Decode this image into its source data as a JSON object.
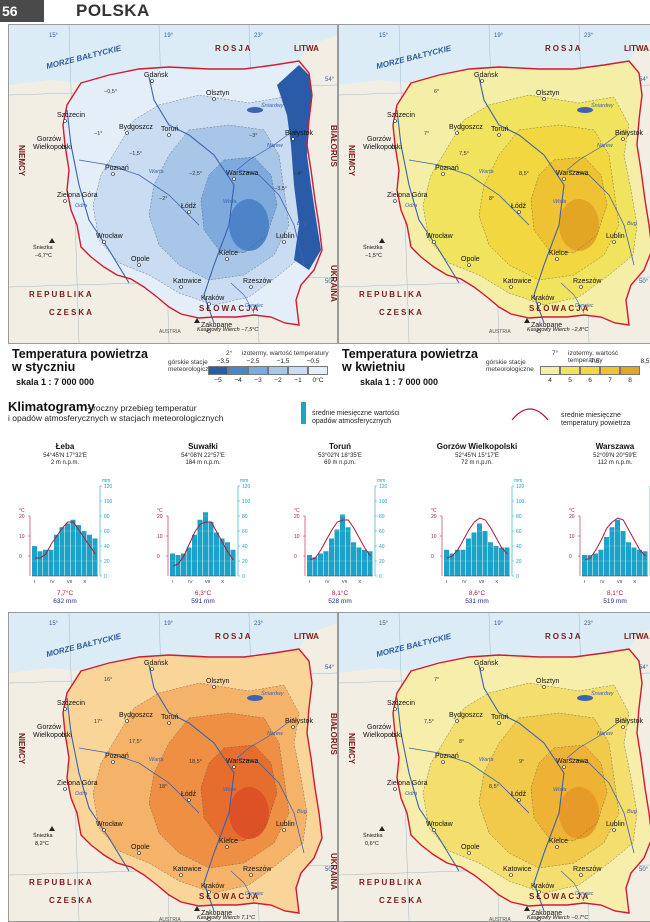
{
  "page": {
    "number": "56",
    "title": "POLSKA"
  },
  "colors": {
    "january_ramp": [
      "#e4eef8",
      "#c9dcf1",
      "#a8c6e8",
      "#7ea9dc",
      "#4d83c7",
      "#2a5ba8"
    ],
    "april_ramp": [
      "#f4eea6",
      "#f0e35e",
      "#f2d740",
      "#eec232",
      "#e3a624"
    ],
    "july_ramp": [
      "#f9d59a",
      "#f5b36a",
      "#ef8f43",
      "#e76d2f",
      "#dc5226"
    ],
    "october_ramp": [
      "#f6eeaa",
      "#f3de6e",
      "#f1c94b",
      "#eeb334",
      "#e69a27"
    ],
    "border_red": "#d01a32",
    "river_blue": "#3a63b0",
    "bars_blue": "#1aa2c8",
    "temp_curve": "#b0173a"
  },
  "maps": {
    "sea_label": "MORZE BAŁTYCKIE",
    "neighbors": [
      "ROSJA",
      "LITWA",
      "BIAŁORUŚ",
      "UKRAINA",
      "NIEMCY",
      "REPUBLIKA",
      "CZESKA",
      "SŁOWACJA",
      "AUSTRIA"
    ],
    "meridians": [
      "15°",
      "19°",
      "23°"
    ],
    "parallels": [
      "54°",
      "50°"
    ],
    "cities": [
      "Gdańsk",
      "Olsztyn",
      "Szczecin",
      "Bydgoszcz",
      "Toruń",
      "Białystok",
      "Gorzów Wielkopolski",
      "Poznań",
      "Warszawa",
      "Zielona Góra",
      "Łódź",
      "Lublin",
      "Wrocław",
      "Opole",
      "Kielce",
      "Katowice",
      "Rzeszów",
      "Kraków",
      "Zakopane"
    ],
    "rivers": [
      "Wisła",
      "Odra",
      "Warta",
      "Bug",
      "Narew",
      "Śniardwy",
      "Dunajec"
    ],
    "january": {
      "snezka_label": "Śnieżka",
      "snezka_value": "−6,7°C",
      "kasprowy_label": "Kasprowy Wierch",
      "kasprowy_value": "−7,5°C",
      "isotherm_labels": [
        "−0,5°",
        "−1°",
        "−1,5°",
        "−2°",
        "−2,5°",
        "−3°",
        "−3,5°",
        "−4°"
      ]
    },
    "april": {
      "snezka_label": "Śnieżka",
      "snezka_value": "−1,5°C",
      "kasprowy_label": "Kasprowy Wierch",
      "kasprowy_value": "−2,8°C",
      "isotherm_labels": [
        "6°",
        "7°",
        "7,5°",
        "8°",
        "8,5°"
      ]
    },
    "july": {
      "snezka_label": "Śnieżka",
      "snezka_value": "8,2°C",
      "kasprowy_label": "Kasprowy Wierch",
      "kasprowy_value": "7,1°C",
      "isotherm_labels": [
        "16°",
        "17°",
        "17,5°",
        "18°",
        "18,5°"
      ]
    },
    "october": {
      "snezka_label": "Śnieżka",
      "snezka_value": "0,6°C",
      "kasprowy_label": "Kasprowy Wierch",
      "kasprowy_value": "−0,7°C",
      "isotherm_labels": [
        "7°",
        "7,5°",
        "8°",
        "8,5°",
        "9°"
      ]
    }
  },
  "legend_january": {
    "title": "Temperatura powietrza\nw styczniu",
    "scale": "skala  1 : 7 000 000",
    "isotherm_text": "izotermy, wartość temperatury",
    "stations_text": "górskie stacje\nmeteorologiczne",
    "sample_iso": "2°",
    "top_values": [
      "−3,5",
      "−2,5",
      "−1,5",
      "−0,5"
    ],
    "bottom_values": [
      "−5",
      "−4",
      "−3",
      "−2",
      "−1",
      "0°C"
    ]
  },
  "legend_april": {
    "title": "Temperatura powietrza\nw kwietniu",
    "scale": "skala  1 : 7 000 000",
    "isotherm_text": "izotermy, wartość temperatury",
    "stations_text": "górskie stacje\nmeteorologiczne",
    "sample_iso": "7°",
    "top_values": [
      "7,5",
      "8,5"
    ],
    "bottom_values": [
      "4",
      "5",
      "6",
      "7",
      "8"
    ]
  },
  "climatograms": {
    "title": "Klimatogramy",
    "subtitle": "– roczny przebieg temperatur\ni opadów atmosferycznych w stacjach meteorologicznych",
    "legend_bars": "średnie miesięczne wartości\nopadów atmosferycznych",
    "legend_curve": "średnie miesięczne\ntemperatury powietrza",
    "unit_c": "°C",
    "unit_mm": "mm",
    "months": [
      "I",
      "IV",
      "VII",
      "X"
    ],
    "stations": [
      {
        "name": "Łeba",
        "coord": "54°45′N 17°32′E",
        "alt": "2 m n.p.m.",
        "temp": "7,7°C",
        "precip": "632 mm",
        "precip_mm": [
          40,
          33,
          35,
          35,
          55,
          65,
          70,
          75,
          68,
          60,
          55,
          50
        ],
        "temp_c": [
          -1,
          -1,
          1,
          6,
          10,
          14,
          17,
          17,
          13,
          9,
          5,
          1
        ]
      },
      {
        "name": "Suwałki",
        "coord": "54°08′N 22°57′E",
        "alt": "184 m n.p.m.",
        "temp": "6,3°C",
        "precip": "591 mm",
        "precip_mm": [
          30,
          28,
          30,
          38,
          55,
          75,
          85,
          72,
          58,
          50,
          45,
          35
        ],
        "temp_c": [
          -5,
          -4,
          0,
          6,
          12,
          16,
          17,
          17,
          12,
          7,
          2,
          -2
        ]
      },
      {
        "name": "Toruń",
        "coord": "53°02′N 18°35′E",
        "alt": "69 m n.p.m.",
        "temp": "8,1°C",
        "precip": "528 mm",
        "precip_mm": [
          28,
          25,
          30,
          33,
          50,
          62,
          82,
          65,
          45,
          38,
          35,
          33
        ],
        "temp_c": [
          -2,
          -1,
          3,
          8,
          13,
          17,
          18,
          18,
          14,
          9,
          4,
          0
        ]
      },
      {
        "name": "Gorzów Wielkopolski",
        "coord": "52°45′N 15°17′E",
        "alt": "72 m n.p.m.",
        "temp": "8,6°C",
        "precip": "531 mm",
        "precip_mm": [
          35,
          30,
          35,
          35,
          50,
          58,
          70,
          60,
          45,
          40,
          38,
          38
        ],
        "temp_c": [
          -1,
          0,
          3,
          8,
          13,
          17,
          19,
          18,
          14,
          9,
          4,
          1
        ]
      },
      {
        "name": "Warszawa",
        "coord": "52°09′N 20°59′E",
        "alt": "112 m n.p.m.",
        "temp": "8,1°C",
        "precip": "519 mm",
        "precip_mm": [
          28,
          28,
          30,
          35,
          52,
          65,
          75,
          60,
          45,
          38,
          35,
          33
        ],
        "temp_c": [
          -2,
          -1,
          3,
          8,
          14,
          17,
          19,
          18,
          13,
          8,
          3,
          0
        ]
      }
    ]
  }
}
